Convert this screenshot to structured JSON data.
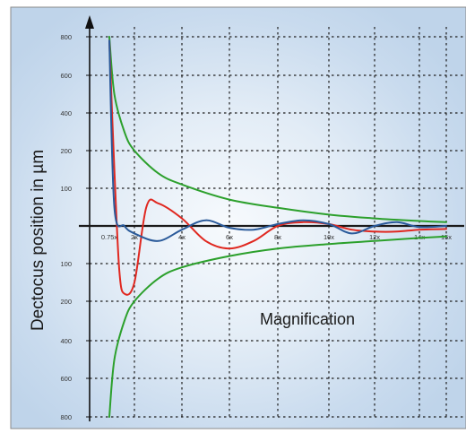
{
  "chart_data": {
    "type": "line",
    "xlabel": "Magnification",
    "ylabel": "Dectocus position in µm",
    "y_tick_labels": [
      "800",
      "600",
      "400",
      "200",
      "100",
      "100",
      "200",
      "400",
      "600",
      "800"
    ],
    "x_tick_labels": [
      "0.75x",
      "2x",
      "4x",
      "6x",
      "8x",
      "10x",
      "12x",
      "14x",
      "15x"
    ],
    "grid": true,
    "grid_style": "dashed",
    "axis_arrow_on_y": true,
    "series": [
      {
        "color": "#2ca02c",
        "points": [
          [
            0.75,
            800
          ],
          [
            1,
            500
          ],
          [
            1.5,
            300
          ],
          [
            2,
            200
          ],
          [
            3,
            140
          ],
          [
            4,
            110
          ],
          [
            6,
            70
          ],
          [
            8,
            48
          ],
          [
            10,
            30
          ],
          [
            12,
            20
          ],
          [
            14,
            13
          ],
          [
            15,
            10
          ]
        ]
      },
      {
        "color": "#2ca02c",
        "points": [
          [
            0.75,
            -800
          ],
          [
            1,
            -500
          ],
          [
            1.5,
            -300
          ],
          [
            2,
            -200
          ],
          [
            3,
            -140
          ],
          [
            4,
            -110
          ],
          [
            6,
            -80
          ],
          [
            8,
            -60
          ],
          [
            10,
            -48
          ],
          [
            12,
            -40
          ],
          [
            14,
            -32
          ],
          [
            15,
            -28
          ]
        ]
      },
      {
        "color": "#e02820",
        "points": [
          [
            0.75,
            780
          ],
          [
            1,
            150
          ],
          [
            1.25,
            -120
          ],
          [
            1.5,
            -180
          ],
          [
            2,
            -150
          ],
          [
            2.5,
            50
          ],
          [
            3,
            60
          ],
          [
            4,
            20
          ],
          [
            5,
            -40
          ],
          [
            6,
            -60
          ],
          [
            7,
            -40
          ],
          [
            8,
            0
          ],
          [
            9,
            10
          ],
          [
            10,
            5
          ],
          [
            11,
            -10
          ],
          [
            12,
            -15
          ],
          [
            13,
            -15
          ],
          [
            14,
            -10
          ],
          [
            15,
            -8
          ]
        ]
      },
      {
        "color": "#2a5a9a",
        "points": [
          [
            0.75,
            780
          ],
          [
            1,
            50
          ],
          [
            1.5,
            0
          ],
          [
            2,
            -20
          ],
          [
            3,
            -40
          ],
          [
            4,
            -10
          ],
          [
            5,
            15
          ],
          [
            6,
            -5
          ],
          [
            7,
            -10
          ],
          [
            8,
            5
          ],
          [
            9,
            15
          ],
          [
            10,
            5
          ],
          [
            11,
            -20
          ],
          [
            12,
            0
          ],
          [
            13,
            10
          ],
          [
            14,
            -3
          ],
          [
            15,
            0
          ]
        ]
      }
    ]
  }
}
